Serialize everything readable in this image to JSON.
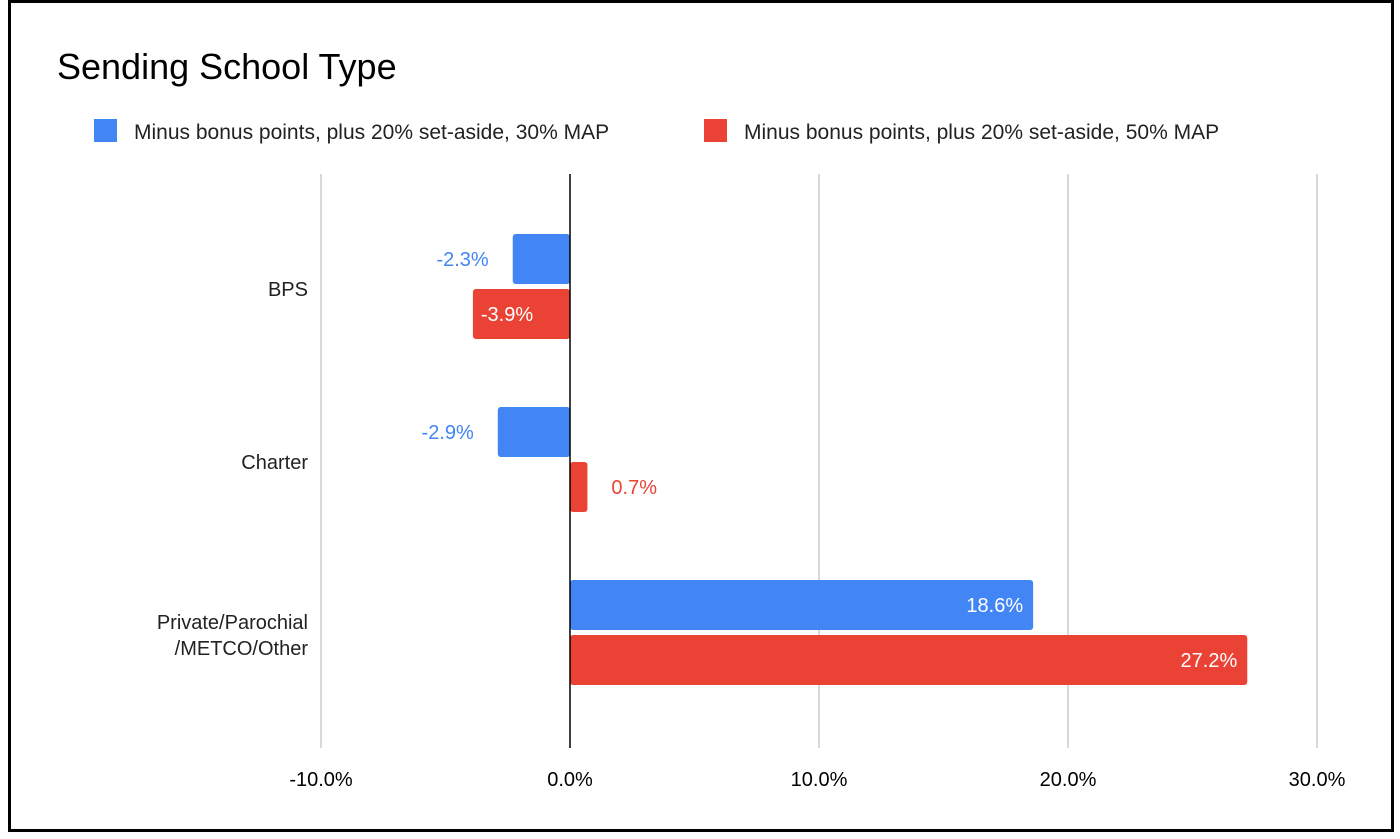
{
  "chart_data": {
    "type": "bar",
    "orientation": "horizontal",
    "title": "Sending School Type",
    "categories": [
      "BPS",
      "Charter",
      "Private/Parochial\n/METCO/Other"
    ],
    "series": [
      {
        "name": "Minus bonus points, plus 20% set-aside, 30% MAP",
        "color": "#4285f4",
        "values": [
          -2.3,
          -2.9,
          18.6
        ],
        "labels": [
          "-2.3%",
          "-2.9%",
          "18.6%"
        ]
      },
      {
        "name": "Minus bonus points, plus 20% set-aside, 50% MAP",
        "color": "#ea4335",
        "values": [
          -3.9,
          0.7,
          27.2
        ],
        "labels": [
          "-3.9%",
          "0.7%",
          "27.2%"
        ]
      }
    ],
    "xlim": [
      -10,
      30
    ],
    "xticks": [
      -10,
      0,
      10,
      20,
      30
    ],
    "xtick_labels": [
      "-10.0%",
      "0.0%",
      "10.0%",
      "20.0%",
      "30.0%"
    ],
    "xlabel": "",
    "ylabel": "",
    "grid": true,
    "legend_position": "top"
  }
}
